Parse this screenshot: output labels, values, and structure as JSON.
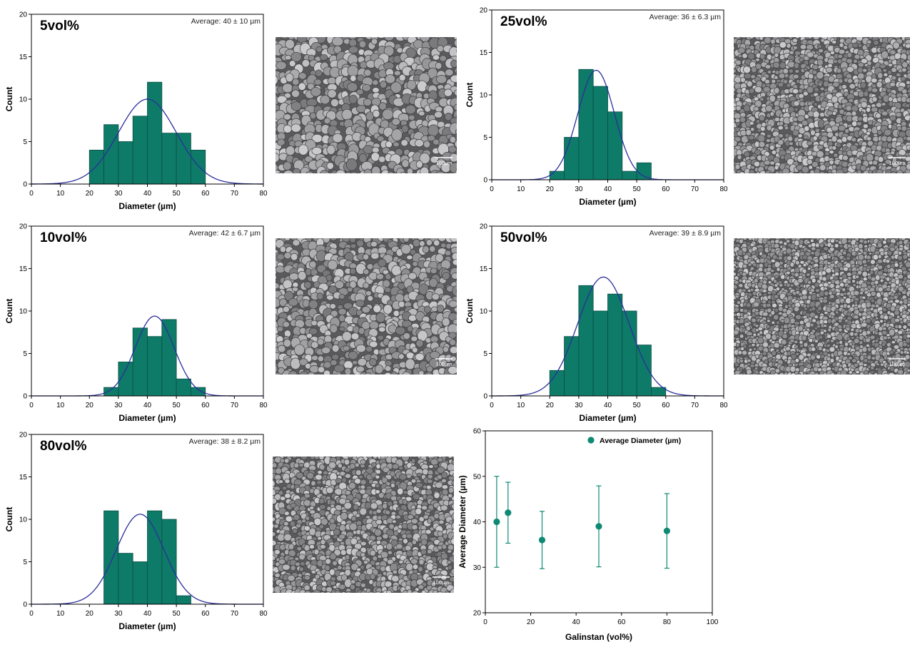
{
  "colors": {
    "bar_fill": "#0e7a68",
    "bar_stroke": "#0b4f44",
    "fit_curve": "#2b2f9c",
    "marker": "#0e8a74",
    "micro_base": "#5a5a5c",
    "micro_grain": "#a8a8aa"
  },
  "chart_data": [
    {
      "id": "h5",
      "type": "bar",
      "subtype": "histogram-with-normal-fit",
      "panel_label": "5vol%",
      "annotation": "Average: 40 ± 10 µm",
      "xlabel": "Diameter (µm)",
      "ylabel": "Count",
      "xlim": [
        0,
        80
      ],
      "ylim": [
        0,
        20
      ],
      "xticks": [
        0,
        10,
        20,
        30,
        40,
        50,
        60,
        70,
        80
      ],
      "yticks": [
        0,
        5,
        10,
        15,
        20
      ],
      "bin_width": 5,
      "bins": [
        20,
        25,
        30,
        35,
        40,
        45,
        50,
        55
      ],
      "counts": [
        4,
        7,
        5,
        8,
        12,
        6,
        6,
        4
      ],
      "fit": {
        "mean": 40,
        "sd": 10,
        "peak": 10
      }
    },
    {
      "id": "h25",
      "type": "bar",
      "subtype": "histogram-with-normal-fit",
      "panel_label": "25vol%",
      "annotation": "Average: 36 ± 6.3 µm",
      "xlabel": "Diameter (µm)",
      "ylabel": "Count",
      "xlim": [
        0,
        80
      ],
      "ylim": [
        0,
        20
      ],
      "xticks": [
        0,
        10,
        20,
        30,
        40,
        50,
        60,
        70,
        80
      ],
      "yticks": [
        0,
        5,
        10,
        15,
        20
      ],
      "bin_width": 5,
      "bins": [
        20,
        25,
        30,
        35,
        40,
        45,
        50
      ],
      "counts": [
        1,
        5,
        13,
        11,
        8,
        1,
        2
      ],
      "fit": {
        "mean": 36,
        "sd": 6.3,
        "peak": 12.9
      }
    },
    {
      "id": "h10",
      "type": "bar",
      "subtype": "histogram-with-normal-fit",
      "panel_label": "10vol%",
      "annotation": "Average: 42 ± 6.7 µm",
      "xlabel": "Diameter (µm)",
      "ylabel": "Count",
      "xlim": [
        0,
        80
      ],
      "ylim": [
        0,
        20
      ],
      "xticks": [
        0,
        10,
        20,
        30,
        40,
        50,
        60,
        70,
        80
      ],
      "yticks": [
        0,
        5,
        10,
        15,
        20
      ],
      "bin_width": 5,
      "bins": [
        25,
        30,
        35,
        40,
        45,
        50,
        55
      ],
      "counts": [
        1,
        4,
        8,
        7,
        9,
        2,
        1
      ],
      "fit": {
        "mean": 42.5,
        "sd": 6.7,
        "peak": 9.4
      }
    },
    {
      "id": "h50",
      "type": "bar",
      "subtype": "histogram-with-normal-fit",
      "panel_label": "50vol%",
      "annotation": "Average: 39 ± 8.9 µm",
      "xlabel": "Diameter (µm)",
      "ylabel": "Count",
      "xlim": [
        0,
        80
      ],
      "ylim": [
        0,
        20
      ],
      "xticks": [
        0,
        10,
        20,
        30,
        40,
        50,
        60,
        70,
        80
      ],
      "yticks": [
        0,
        5,
        10,
        15,
        20
      ],
      "bin_width": 5,
      "bins": [
        20,
        25,
        30,
        35,
        40,
        45,
        50,
        55
      ],
      "counts": [
        3,
        7,
        13,
        10,
        12,
        10,
        6,
        1
      ],
      "fit": {
        "mean": 38.5,
        "sd": 8.9,
        "peak": 14
      }
    },
    {
      "id": "h80",
      "type": "bar",
      "subtype": "histogram-with-normal-fit",
      "panel_label": "80vol%",
      "annotation": "Average: 38 ± 8.2 µm",
      "xlabel": "Diameter (µm)",
      "ylabel": "Count",
      "xlim": [
        0,
        80
      ],
      "ylim": [
        0,
        20
      ],
      "xticks": [
        0,
        10,
        20,
        30,
        40,
        50,
        60,
        70,
        80
      ],
      "yticks": [
        0,
        5,
        10,
        15,
        20
      ],
      "bin_width": 5,
      "bins": [
        25,
        30,
        35,
        40,
        45,
        50
      ],
      "counts": [
        11,
        6,
        5,
        11,
        10,
        1
      ],
      "fit": {
        "mean": 37.5,
        "sd": 8.2,
        "peak": 10.6
      }
    },
    {
      "id": "sc",
      "type": "scatter",
      "subtype": "error-bars",
      "xlabel": "Galinstan (vol%)",
      "ylabel": "Average Diameter (µm)",
      "xlim": [
        0,
        100
      ],
      "ylim": [
        20,
        60
      ],
      "xticks": [
        0,
        20,
        40,
        60,
        80,
        100
      ],
      "yticks": [
        20,
        30,
        40,
        50,
        60
      ],
      "legend": "top-right",
      "series": [
        {
          "name": "Average Diameter (µm)",
          "x": [
            5,
            10,
            25,
            50,
            80
          ],
          "y": [
            40,
            42,
            36,
            39,
            38
          ],
          "err": [
            10,
            6.7,
            6.3,
            8.9,
            8.2
          ]
        }
      ]
    }
  ],
  "micrographs": [
    {
      "id": "m5",
      "scale_label": "100µm"
    },
    {
      "id": "m25",
      "scale_label": "100µm"
    },
    {
      "id": "m10",
      "scale_label": "100µm"
    },
    {
      "id": "m50",
      "scale_label": "100µm"
    },
    {
      "id": "m80",
      "scale_label": "100µm"
    }
  ]
}
